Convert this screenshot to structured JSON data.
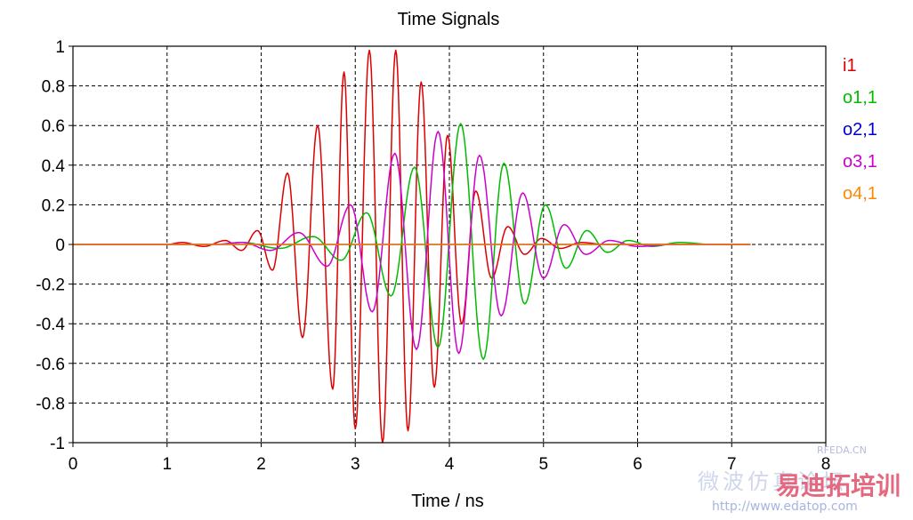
{
  "chart_data": {
    "type": "line",
    "title": "Time Signals",
    "xlabel": "Time / ns",
    "ylabel": "",
    "xlim": [
      0,
      8
    ],
    "ylim": [
      -1,
      1
    ],
    "x_ticks": [
      "0",
      "1",
      "2",
      "3",
      "4",
      "5",
      "6",
      "7",
      "8"
    ],
    "y_ticks": [
      "1",
      "0.8",
      "0.6",
      "0.4",
      "0.2",
      "0",
      "-0.2",
      "-0.4",
      "-0.6",
      "-0.8",
      "-1"
    ],
    "grid": true,
    "legend_position": "right",
    "series": [
      {
        "name": "i1",
        "color": "#dd0000",
        "x": [
          0,
          1.0,
          1.16,
          1.39,
          1.62,
          1.79,
          1.96,
          2.12,
          2.28,
          2.44,
          2.6,
          2.76,
          2.88,
          3.0,
          3.15,
          3.29,
          3.43,
          3.56,
          3.7,
          3.84,
          3.98,
          4.13,
          4.28,
          4.45,
          4.62,
          4.8,
          4.98,
          5.18,
          5.4,
          5.65,
          6.0,
          7.2
        ],
        "y": [
          0,
          0,
          0.01,
          -0.01,
          0.02,
          -0.03,
          0.07,
          -0.13,
          0.36,
          -0.47,
          0.6,
          -0.73,
          0.87,
          -0.93,
          0.98,
          -1.0,
          0.98,
          -0.94,
          0.82,
          -0.72,
          0.55,
          -0.4,
          0.27,
          -0.17,
          0.09,
          -0.05,
          0.03,
          -0.02,
          0.01,
          0,
          0,
          0
        ]
      },
      {
        "name": "o1,1",
        "color": "#00bb00",
        "x": [
          0,
          1.5,
          1.8,
          2.2,
          2.55,
          2.85,
          3.12,
          3.38,
          3.63,
          3.88,
          4.12,
          4.36,
          4.58,
          4.8,
          5.02,
          5.24,
          5.46,
          5.68,
          5.9,
          6.15,
          6.45,
          6.8,
          7.2
        ],
        "y": [
          0,
          0,
          0.01,
          -0.02,
          0.04,
          -0.08,
          0.16,
          -0.26,
          0.39,
          -0.52,
          0.61,
          -0.58,
          0.41,
          -0.3,
          0.2,
          -0.12,
          0.07,
          -0.04,
          0.02,
          -0.01,
          0.01,
          0,
          0
        ]
      },
      {
        "name": "o2,1",
        "color": "#0000cc",
        "x": [
          0,
          7.2
        ],
        "y": [
          0,
          0
        ]
      },
      {
        "name": "o3,1",
        "color": "#cc00cc",
        "x": [
          0,
          1.5,
          1.8,
          2.1,
          2.4,
          2.7,
          2.95,
          3.18,
          3.42,
          3.65,
          3.88,
          4.1,
          4.32,
          4.55,
          4.78,
          5.0,
          5.22,
          5.45,
          5.7,
          6.0,
          6.4,
          7.2
        ],
        "y": [
          0,
          0,
          0.01,
          -0.03,
          0.06,
          -0.11,
          0.2,
          -0.34,
          0.46,
          -0.53,
          0.57,
          -0.55,
          0.45,
          -0.36,
          0.26,
          -0.17,
          0.1,
          -0.05,
          0.02,
          -0.01,
          0,
          0
        ]
      },
      {
        "name": "o4,1",
        "color": "#ff8800",
        "x": [
          0,
          7.2
        ],
        "y": [
          0,
          0
        ]
      }
    ]
  },
  "watermark": {
    "site_cn": "微波仿真论坛",
    "url": "http://www.edatop.com",
    "brand_cn": "易迪拓培训",
    "tag": "RFEDA.CN"
  }
}
